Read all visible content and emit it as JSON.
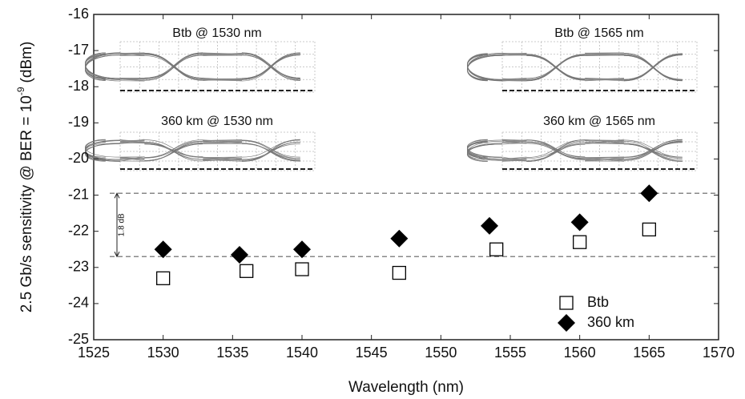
{
  "chart_data": {
    "type": "scatter",
    "xlabel": "Wavelength (nm)",
    "ylabel": [
      "2.5 Gb/s sensitivity @ BER = 10",
      "-9",
      "(dBm)"
    ],
    "xlim": [
      1525,
      1570
    ],
    "xticks": [
      1525,
      1530,
      1535,
      1540,
      1545,
      1550,
      1555,
      1560,
      1565,
      1570
    ],
    "ylim": [
      -25,
      -16
    ],
    "yticks": [
      -25,
      -24,
      -23,
      -22,
      -21,
      -20,
      -19,
      -18,
      -17,
      -16
    ],
    "grid": false,
    "legend": "lower right",
    "series": [
      {
        "name": "Btb",
        "marker": "square",
        "color": "#000000",
        "x": [
          1530,
          1536,
          1540,
          1547,
          1554,
          1560,
          1565
        ],
        "values": [
          -23.3,
          -23.1,
          -23.05,
          -23.15,
          -22.5,
          -22.3,
          -21.95
        ]
      },
      {
        "name": "360 km",
        "marker": "diamond",
        "color": "#000000",
        "x": [
          1530,
          1535.5,
          1540,
          1547,
          1553.5,
          1560,
          1565
        ],
        "values": [
          -22.5,
          -22.65,
          -22.5,
          -22.2,
          -21.85,
          -21.75,
          -20.95
        ]
      }
    ],
    "reference_lines": [
      -20.95,
      -22.7
    ],
    "annotation": "1.8 dB",
    "insets": [
      "Btb @ 1530 nm",
      "360 km @ 1530 nm",
      "Btb @ 1565 nm",
      "360 km @ 1565 nm"
    ]
  }
}
